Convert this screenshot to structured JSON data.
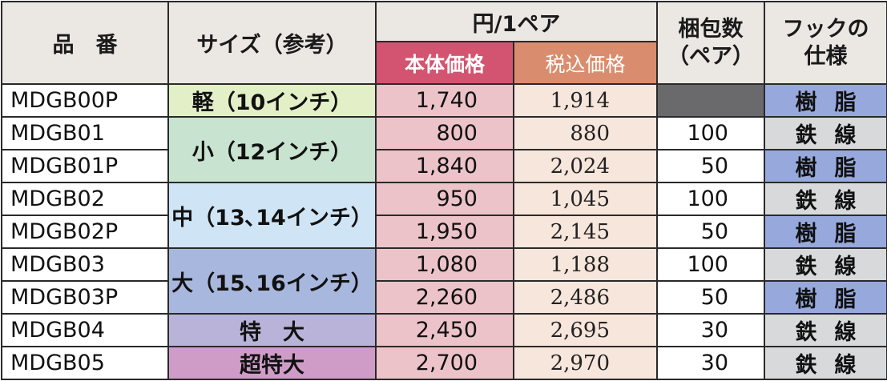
{
  "header": {
    "hinban": "品　番",
    "size": "サイズ（参考）",
    "yen_per_pair": "円/1ペア",
    "honta": "本体価格",
    "zeikomi": "税込価格",
    "konpo_line1": "梱包数",
    "konpo_line2": "（ペア）",
    "hook_line1": "フックの",
    "hook_line2": "仕様"
  },
  "colors": {
    "honta_header": "#d35470",
    "zeikomi_header": "#d98d6e",
    "resin": "#97a9dc",
    "wire": "#d8d9db"
  },
  "rows": [
    {
      "code": "MDGB00P",
      "honta": "1,740",
      "zeikomi": "1,914",
      "qty": "",
      "spec": "樹脂"
    },
    {
      "code": "MDGB01",
      "honta": "800",
      "zeikomi": "880",
      "qty": "100",
      "spec": "鉄線"
    },
    {
      "code": "MDGB01P",
      "honta": "1,840",
      "zeikomi": "2,024",
      "qty": "50",
      "spec": "樹脂"
    },
    {
      "code": "MDGB02",
      "honta": "950",
      "zeikomi": "1,045",
      "qty": "100",
      "spec": "鉄線"
    },
    {
      "code": "MDGB02P",
      "honta": "1,950",
      "zeikomi": "2,145",
      "qty": "50",
      "spec": "樹脂"
    },
    {
      "code": "MDGB03",
      "honta": "1,080",
      "zeikomi": "1,188",
      "qty": "100",
      "spec": "鉄線"
    },
    {
      "code": "MDGB03P",
      "honta": "2,260",
      "zeikomi": "2,486",
      "qty": "50",
      "spec": "樹脂"
    },
    {
      "code": "MDGB04",
      "honta": "2,450",
      "zeikomi": "2,695",
      "qty": "30",
      "spec": "鉄線"
    },
    {
      "code": "MDGB05",
      "honta": "2,700",
      "zeikomi": "2,970",
      "qty": "30",
      "spec": "鉄線"
    }
  ],
  "sizes": {
    "kei": "軽（10インチ）",
    "sho": "小（12インチ）",
    "chu": "中（13､14インチ）",
    "dai": "大（15､16インチ）",
    "toku": "特　大",
    "cho": "超特大"
  }
}
